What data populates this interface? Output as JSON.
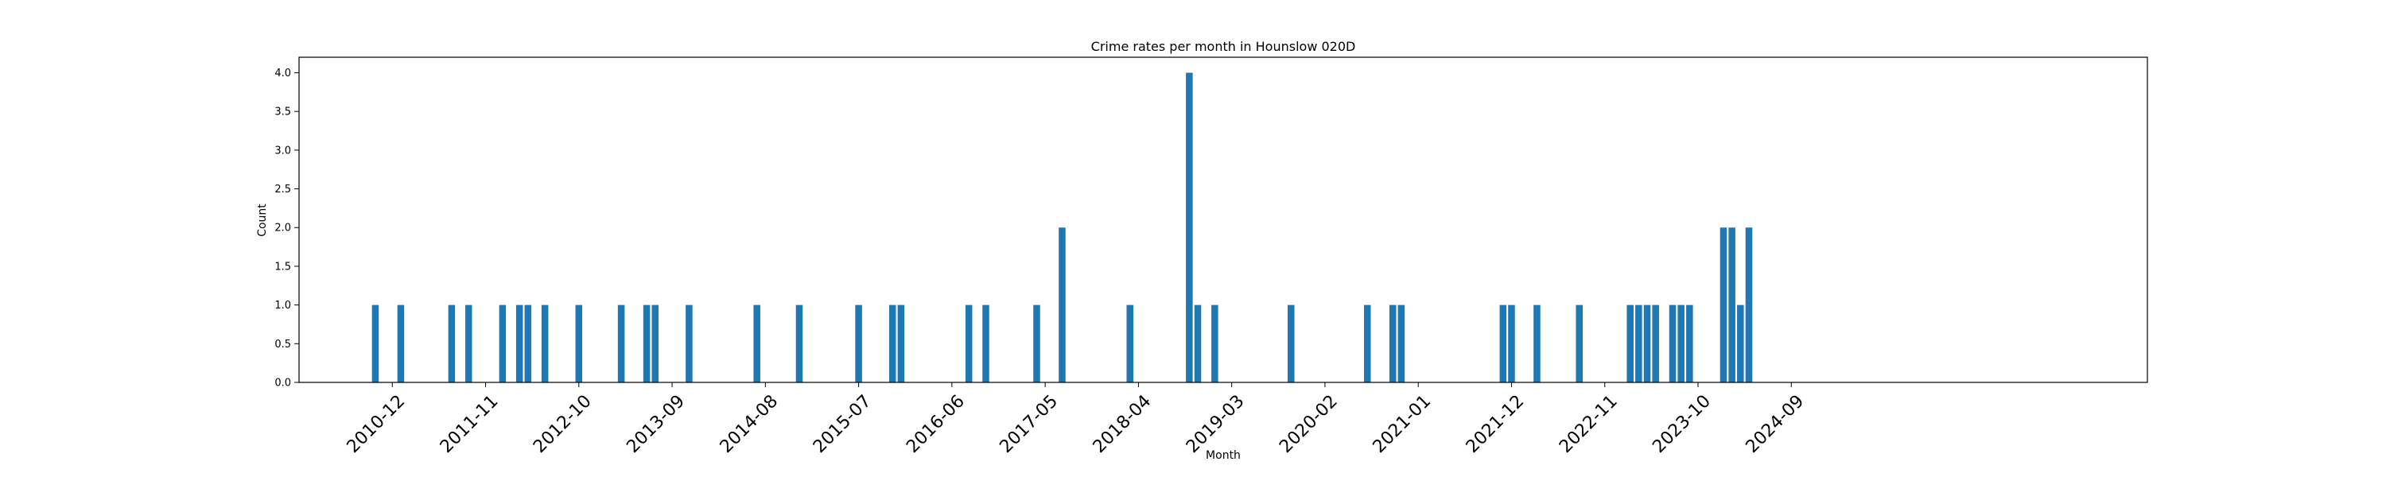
{
  "chart_data": {
    "type": "bar",
    "title": "Crime rates per month in Hounslow 020D",
    "xlabel": "Month",
    "ylabel": "Count",
    "ylim": [
      0,
      4.2
    ],
    "yticks": [
      0.0,
      0.5,
      1.0,
      1.5,
      2.0,
      2.5,
      3.0,
      3.5,
      4.0
    ],
    "ytick_labels": [
      "0.0",
      "0.5",
      "1.0",
      "1.5",
      "2.0",
      "2.5",
      "3.0",
      "3.5",
      "4.0"
    ],
    "xtick_labels": [
      "2010-12",
      "2011-11",
      "2012-10",
      "2013-09",
      "2014-08",
      "2015-07",
      "2016-06",
      "2017-05",
      "2018-04",
      "2019-03",
      "2020-02",
      "2021-01",
      "2021-12",
      "2022-11",
      "2023-10",
      "2024-09"
    ],
    "xlim": [
      "2010-01",
      "2028-03"
    ],
    "categories": [
      "2010-10",
      "2011-01",
      "2011-07",
      "2011-09",
      "2012-01",
      "2012-03",
      "2012-04",
      "2012-06",
      "2012-10",
      "2013-03",
      "2013-06",
      "2013-07",
      "2013-11",
      "2014-07",
      "2014-12",
      "2015-07",
      "2015-11",
      "2015-12",
      "2016-08",
      "2016-10",
      "2017-04",
      "2017-07",
      "2018-03",
      "2018-10",
      "2018-11",
      "2019-01",
      "2019-10",
      "2020-07",
      "2020-10",
      "2020-11",
      "2021-11",
      "2021-12",
      "2022-03",
      "2022-08",
      "2023-02",
      "2023-03",
      "2023-04",
      "2023-05",
      "2023-07",
      "2023-08",
      "2023-09",
      "2024-01",
      "2024-02",
      "2024-03",
      "2024-04"
    ],
    "values": [
      1,
      1,
      1,
      1,
      1,
      1,
      1,
      1,
      1,
      1,
      1,
      1,
      1,
      1,
      1,
      1,
      1,
      1,
      1,
      1,
      1,
      2,
      1,
      4,
      1,
      1,
      1,
      1,
      1,
      1,
      1,
      1,
      1,
      1,
      1,
      1,
      1,
      1,
      1,
      1,
      1,
      2,
      2,
      1,
      2
    ],
    "bar_color": "#1f77b4",
    "grid": false,
    "legend": false
  }
}
